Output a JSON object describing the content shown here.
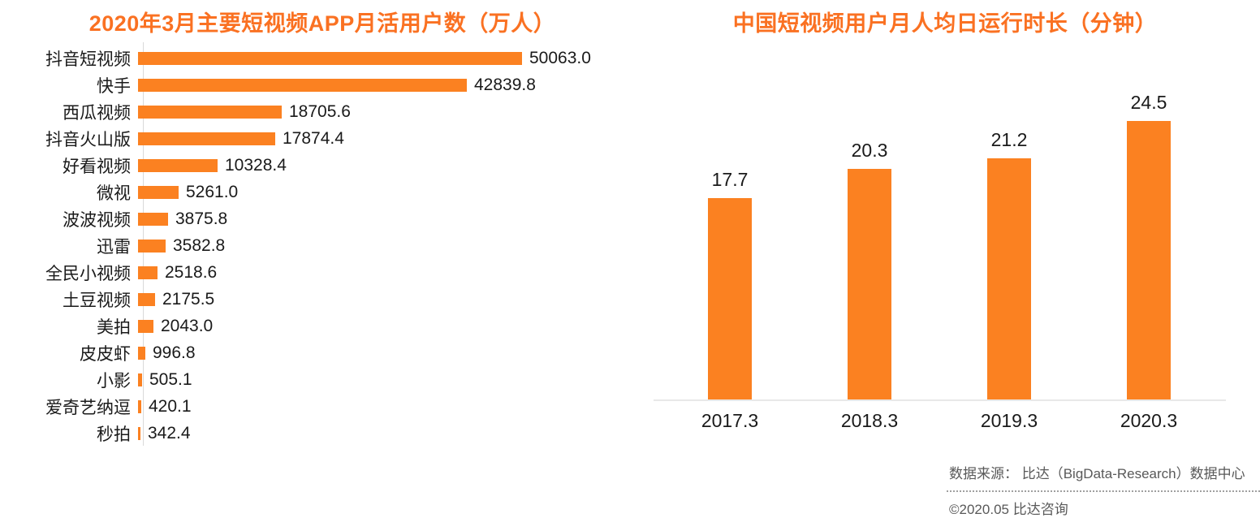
{
  "colors": {
    "bar_orange": "#FB8121",
    "title_orange": "#FA7122",
    "axis_gray": "#D9D9D9",
    "baseline_gray": "#E8E8E8",
    "text_black": "#1A1A1A",
    "footer_gray": "#595959"
  },
  "chart_data": [
    {
      "type": "bar",
      "orientation": "horizontal",
      "title": "2020年3月主要短视频APP月活用户数（万人）",
      "categories": [
        "抖音短视频",
        "快手",
        "西瓜视频",
        "抖音火山版",
        "好看视频",
        "微视",
        "波波视频",
        "迅雷",
        "全民小视频",
        "土豆视频",
        "美拍",
        "皮皮虾",
        "小影",
        "爱奇艺纳逗",
        "秒拍"
      ],
      "values": [
        50063.0,
        42839.8,
        18705.6,
        17874.4,
        10328.4,
        5261.0,
        3875.8,
        3582.8,
        2518.6,
        2175.5,
        2043.0,
        996.8,
        505.1,
        420.1,
        342.4
      ],
      "value_labels": [
        "50063.0",
        "42839.8",
        "18705.6",
        "17874.4",
        "10328.4",
        "5261.0",
        "3875.8",
        "3582.8",
        "2518.6",
        "2175.5",
        "2043.0",
        "996.8",
        "505.1",
        "420.1",
        "342.4"
      ],
      "xlabel": "",
      "ylabel": "",
      "xlim": [
        0,
        52000
      ],
      "grid": false,
      "legend": false
    },
    {
      "type": "bar",
      "orientation": "vertical",
      "title": "中国短视频用户月人均日运行时长（分钟）",
      "categories": [
        "2017.3",
        "2018.3",
        "2019.3",
        "2020.3"
      ],
      "values": [
        17.7,
        20.3,
        21.2,
        24.5
      ],
      "value_labels": [
        "17.7",
        "20.3",
        "21.2",
        "24.5"
      ],
      "xlabel": "",
      "ylabel": "",
      "ylim": [
        0,
        25
      ],
      "grid": false,
      "legend": false
    }
  ],
  "footer": {
    "source": "数据来源： 比达（BigData-Research）数据中心",
    "copyright": "©2020.05 比达咨询"
  }
}
